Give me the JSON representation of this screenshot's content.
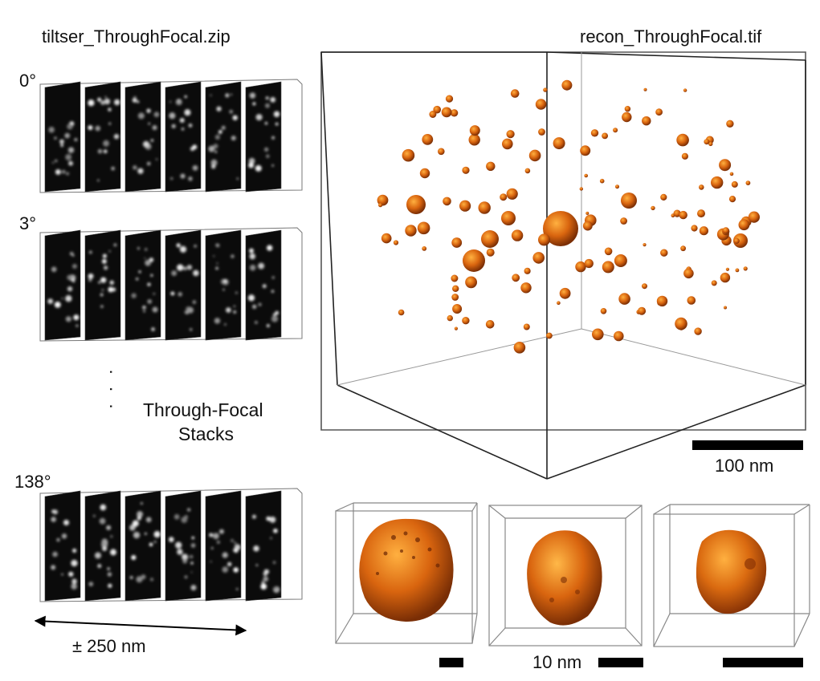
{
  "left_panel": {
    "title": "tiltser_ThroughFocal.zip",
    "angles": [
      "0°",
      "3°",
      "138°"
    ],
    "ellipsis": "· · ·",
    "caption_line1": "Through-Focal",
    "caption_line2": "Stacks",
    "range_label": "± 250 nm"
  },
  "right_panel": {
    "title": "recon_ThroughFocal.tif",
    "scale_label": "100 nm",
    "particle_color": "#d9650f"
  },
  "details": {
    "scale_label": "10 nm"
  }
}
